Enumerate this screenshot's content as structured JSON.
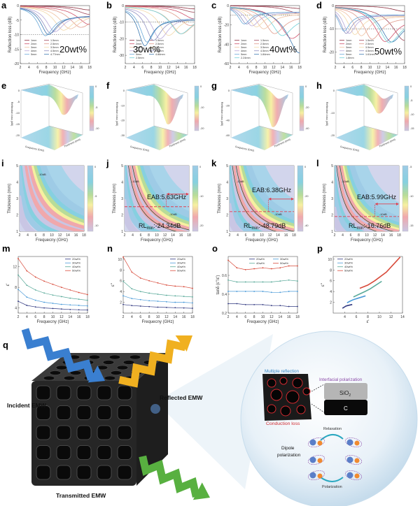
{
  "palette": [
    "#8b2c3c",
    "#a0485a",
    "#d0506a",
    "#e09a8a",
    "#f0c0a0",
    "#f2d8a8",
    "#b8a8d8",
    "#9090c0",
    "#6aa8d8",
    "#3a78b0",
    "#70d0d8"
  ],
  "colormap": [
    "#c9c6e4",
    "#f0a8ac",
    "#f6f0a0",
    "#b8dc98",
    "#86d0e0",
    "#9ecbe6"
  ],
  "series_colors_4": [
    "#303880",
    "#4a9ad8",
    "#5aaa9a",
    "#d84a3a"
  ],
  "chart_data": [
    {
      "label": "a",
      "type": "line",
      "title": "20wt%",
      "xlabel": "Frequency (GHz)",
      "ylabel": "Reflection loss (dB)",
      "xlim": [
        2,
        18
      ],
      "xticks": [
        2,
        4,
        6,
        8,
        10,
        12,
        14,
        16,
        18
      ],
      "ylim": [
        -20,
        0
      ],
      "yticks": [
        0,
        -5,
        -10,
        -15,
        -20
      ],
      "reference_line": -10,
      "series": [
        {
          "name": "1mm",
          "min_freq": 18,
          "min_rl": -1.5
        },
        {
          "name": "1.5mm",
          "min_freq": 18,
          "min_rl": -3
        },
        {
          "name": "2mm",
          "min_freq": 18,
          "min_rl": -6.5
        },
        {
          "name": "2.5mm",
          "min_freq": 16,
          "min_rl": -7.5
        },
        {
          "name": "3mm",
          "min_freq": 13.5,
          "min_rl": -8
        },
        {
          "name": "3.5mm",
          "min_freq": 12,
          "min_rl": -8.5
        },
        {
          "name": "4mm",
          "min_freq": 10,
          "min_rl": -9
        },
        {
          "name": "4.5mm",
          "min_freq": 9,
          "min_rl": -9.5
        },
        {
          "name": "5mm",
          "min_freq": 7.8,
          "min_rl": -10.4
        },
        {
          "name": "4.77mm",
          "min_freq": 8.5,
          "min_rl": -10
        }
      ]
    },
    {
      "label": "b",
      "type": "line",
      "title": "30wt%",
      "xlabel": "Frequency (GHz)",
      "ylabel": "Reflection loss (dB)",
      "xlim": [
        2,
        18
      ],
      "xticks": [
        2,
        4,
        6,
        8,
        10,
        12,
        14,
        16,
        18
      ],
      "ylim": [
        -35,
        0
      ],
      "yticks": [
        0,
        -10,
        -20,
        -30
      ],
      "reference_line": -10,
      "series": [
        {
          "name": "1mm",
          "min_freq": 18,
          "min_rl": -2
        },
        {
          "name": "1.5mm",
          "min_freq": 18,
          "min_rl": -4
        },
        {
          "name": "2mm",
          "min_freq": 18,
          "min_rl": -8
        },
        {
          "name": "2.5mm",
          "min_freq": 17,
          "min_rl": -12
        },
        {
          "name": "3mm",
          "min_freq": 15,
          "min_rl": -17
        },
        {
          "name": "3.5mm",
          "min_freq": 12,
          "min_rl": -18
        },
        {
          "name": "4mm",
          "min_freq": 10,
          "min_rl": -20
        },
        {
          "name": "4.5mm",
          "min_freq": 8.5,
          "min_rl": -21
        },
        {
          "name": "5mm",
          "min_freq": 7,
          "min_rl": -22
        },
        {
          "name": "4.86mm",
          "min_freq": 6.5,
          "min_rl": -24.3
        },
        {
          "name": "2.5mm",
          "min_freq": 14.8,
          "min_rl": -17
        }
      ]
    },
    {
      "label": "c",
      "type": "line",
      "title": "40wt%",
      "xlabel": "Frequency (GHz)",
      "ylabel": "Reflection loss (dB)",
      "xlim": [
        2,
        18
      ],
      "xticks": [
        2,
        4,
        6,
        8,
        10,
        12,
        14,
        16,
        18
      ],
      "ylim": [
        -60,
        0
      ],
      "yticks": [
        0,
        -20,
        -40,
        -60
      ],
      "reference_line": -10,
      "series": [
        {
          "name": "1mm",
          "min_freq": 18,
          "min_rl": -3
        },
        {
          "name": "1.5mm",
          "min_freq": 18,
          "min_rl": -8
        },
        {
          "name": "2mm",
          "min_freq": 16.2,
          "min_rl": -34
        },
        {
          "name": "2.5mm",
          "min_freq": 12.2,
          "min_rl": -29
        },
        {
          "name": "3mm",
          "min_freq": 9.7,
          "min_rl": -24
        },
        {
          "name": "3.5mm",
          "min_freq": 8,
          "min_rl": -22
        },
        {
          "name": "4mm",
          "min_freq": 7,
          "min_rl": -21
        },
        {
          "name": "4.5mm",
          "min_freq": 5.8,
          "min_rl": -19
        },
        {
          "name": "5mm",
          "min_freq": 5.2,
          "min_rl": -19
        },
        {
          "name": "1.84mm",
          "min_freq": 18,
          "min_rl": -49
        },
        {
          "name": "2.24mm",
          "min_freq": 14,
          "min_rl": -31
        }
      ]
    },
    {
      "label": "d",
      "type": "line",
      "title": "50wt%",
      "xlabel": "Frequency (GHz)",
      "ylabel": "Reflection loss (dB)",
      "xlim": [
        2,
        18
      ],
      "xticks": [
        2,
        4,
        6,
        8,
        10,
        12,
        14,
        16,
        18
      ],
      "ylim": [
        -25,
        0
      ],
      "yticks": [
        0,
        -10,
        -20
      ],
      "reference_line": -10,
      "series": [
        {
          "name": "1mm",
          "min_freq": 18,
          "min_rl": -2.5
        },
        {
          "name": "1.5mm",
          "min_freq": 18,
          "min_rl": -15
        },
        {
          "name": "2mm",
          "min_freq": 13.5,
          "min_rl": -15.5
        },
        {
          "name": "2.5mm",
          "min_freq": 10.5,
          "min_rl": -14.5
        },
        {
          "name": "3mm",
          "min_freq": 8,
          "min_rl": -13
        },
        {
          "name": "3.5mm",
          "min_freq": 6.5,
          "min_rl": -12.5
        },
        {
          "name": "4mm",
          "min_freq": 5.2,
          "min_rl": -12
        },
        {
          "name": "4.5mm",
          "min_freq": 4.5,
          "min_rl": -12
        },
        {
          "name": "5mm",
          "min_freq": 4,
          "min_rl": -11
        },
        {
          "name": "1.61mm",
          "min_freq": 15,
          "min_rl": -15.7
        },
        {
          "name": "1.8mm",
          "min_freq": 14.5,
          "min_rl": -16
        }
      ]
    },
    {
      "label": "e",
      "type": "surface",
      "xlabel": "Frequency (GHz)",
      "ylabel": "Thickness (mm)",
      "zlabel": "Reflection loss (dB)",
      "zticks": [
        0,
        -5,
        -10,
        -15,
        -20
      ],
      "colorbar_ticks": [
        0,
        -5,
        -10
      ]
    },
    {
      "label": "f",
      "type": "surface",
      "xlabel": "Frequency (GHz)",
      "ylabel": "Thickness (mm)",
      "zlabel": "Reflection loss (dB)",
      "zticks": [
        0,
        -10,
        -20,
        -30
      ],
      "colorbar_ticks": [
        0,
        -10,
        -20
      ]
    },
    {
      "label": "g",
      "type": "surface",
      "xlabel": "Frequency (GHz)",
      "ylabel": "Thickness (mm)",
      "zlabel": "Reflection loss (dB)",
      "zticks": [
        0,
        -20,
        -40,
        -60
      ],
      "colorbar_ticks": [
        0,
        -20,
        -40
      ]
    },
    {
      "label": "h",
      "type": "surface",
      "xlabel": "Frequency (GHz)",
      "ylabel": "Thickness (mm)",
      "zlabel": "Reflection loss (dB)",
      "zticks": [
        0,
        -10,
        -20
      ],
      "colorbar_ticks": [
        0,
        -5,
        -10,
        -15
      ]
    },
    {
      "label": "i",
      "type": "heatmap",
      "xlabel": "Frequecny (GHz)",
      "ylabel": "Thickness (mm)",
      "xlim": [
        2,
        18
      ],
      "xticks": [
        2,
        4,
        6,
        8,
        10,
        12,
        14,
        16,
        18
      ],
      "ylim": [
        1,
        5
      ],
      "yticks": [
        1,
        2,
        3,
        4,
        5
      ],
      "colorbar_ticks": [
        0,
        -5,
        -10
      ],
      "contour_labels": [
        "-10dB"
      ]
    },
    {
      "label": "j",
      "type": "heatmap",
      "xlabel": "Frequecny (GHz)",
      "ylabel": "Thickness (mm)",
      "xlim": [
        2,
        18
      ],
      "xticks": [
        2,
        4,
        6,
        8,
        10,
        12,
        14,
        16,
        18
      ],
      "ylim": [
        1,
        5
      ],
      "yticks": [
        1,
        2,
        3,
        4,
        5
      ],
      "colorbar_ticks": [
        0,
        -10,
        -20
      ],
      "contour_labels": [
        "-10dB",
        "-10dB"
      ],
      "rl_min": {
        "prefix": "RL",
        "sub": "min",
        "value": ":-24.34dB"
      },
      "eab": "EAB:5.63GHz",
      "eab_range": [
        12.37,
        18
      ],
      "matching_thickness": 2.5
    },
    {
      "label": "k",
      "type": "heatmap",
      "xlabel": "Frequecny (GHz)",
      "ylabel": "Thickness (mm)",
      "xlim": [
        2,
        18
      ],
      "xticks": [
        2,
        4,
        6,
        8,
        10,
        12,
        14,
        16,
        18
      ],
      "ylim": [
        1,
        5
      ],
      "yticks": [
        1,
        2,
        3,
        4,
        5
      ],
      "colorbar_ticks": [
        0,
        -20,
        -40
      ],
      "contour_labels": [
        "-10dB",
        "-10dB"
      ],
      "rl_min": {
        "prefix": "RL",
        "sub": "min",
        "value": ":-48.79dB"
      },
      "eab": "EAB:6.38GHz",
      "eab_range": [
        11.62,
        18
      ],
      "matching_thickness": 2.2
    },
    {
      "label": "l",
      "type": "heatmap",
      "xlabel": "Frequecny (GHz)",
      "ylabel": "Thickness (mm)",
      "xlim": [
        2,
        18
      ],
      "xticks": [
        2,
        4,
        6,
        8,
        10,
        12,
        14,
        16,
        18
      ],
      "ylim": [
        1,
        5
      ],
      "yticks": [
        1,
        2,
        3,
        4,
        5
      ],
      "colorbar_ticks": [
        -5,
        -10,
        -15
      ],
      "contour_labels": [
        "-10dB",
        "-10dB"
      ],
      "rl_min": {
        "prefix": "RL",
        "sub": "min",
        "value": ":-16.76dB"
      },
      "eab": "EAB:5.99GHz",
      "eab_range": [
        12.01,
        18
      ],
      "matching_thickness": 1.9
    },
    {
      "label": "m",
      "type": "line",
      "xlabel": "Frequecny (GHz)",
      "ylabel": "ε'",
      "x": [
        2,
        4,
        6,
        8,
        10,
        12,
        14,
        16,
        18
      ],
      "xticks": [
        2,
        4,
        6,
        8,
        10,
        12,
        14,
        16,
        18
      ],
      "ylim": [
        3,
        14
      ],
      "yticks": [
        4,
        8,
        12
      ],
      "series": [
        {
          "name": "20wt%",
          "values": [
            5.3,
            4.5,
            4.2,
            4.0,
            3.9,
            3.8,
            3.7,
            3.65,
            3.6
          ]
        },
        {
          "name": "30wt%",
          "values": [
            7.6,
            6.1,
            5.5,
            5.1,
            4.9,
            4.7,
            4.6,
            4.5,
            4.4
          ]
        },
        {
          "name": "40wt%",
          "values": [
            10.4,
            8.4,
            7.5,
            6.9,
            6.5,
            6.2,
            5.9,
            5.7,
            5.5
          ]
        },
        {
          "name": "50wt%",
          "values": [
            13.6,
            11.2,
            10.0,
            9.2,
            8.6,
            8.0,
            7.5,
            7.0,
            6.6
          ]
        }
      ]
    },
    {
      "label": "n",
      "type": "line",
      "xlabel": "Frequecny (GHz)",
      "ylabel": "ε''",
      "x": [
        2,
        4,
        6,
        8,
        10,
        12,
        14,
        16,
        18
      ],
      "xticks": [
        2,
        4,
        6,
        8,
        10,
        12,
        14,
        16,
        18
      ],
      "ylim": [
        0,
        10.5
      ],
      "yticks": [
        2,
        4,
        6,
        8,
        10
      ],
      "series": [
        {
          "name": "20wt%",
          "values": [
            1.6,
            1.4,
            1.3,
            1.2,
            1.1,
            1.05,
            1.0,
            0.95,
            0.9
          ]
        },
        {
          "name": "30wt%",
          "values": [
            3.2,
            2.7,
            2.5,
            2.3,
            2.2,
            2.1,
            2.0,
            2.0,
            1.9
          ]
        },
        {
          "name": "40wt%",
          "values": [
            5.9,
            4.5,
            4.0,
            3.7,
            3.5,
            3.3,
            3.2,
            3.1,
            3.0
          ]
        },
        {
          "name": "50wt%",
          "values": [
            10.4,
            7.6,
            6.5,
            6.0,
            5.6,
            5.2,
            5.0,
            4.9,
            4.6
          ]
        }
      ]
    },
    {
      "label": "o",
      "type": "line",
      "xlabel": "Frequecny (GHz)",
      "ylabel": "tanδ (ε''/ε')",
      "x": [
        2,
        4,
        6,
        8,
        10,
        12,
        14,
        16,
        18
      ],
      "xticks": [
        2,
        4,
        6,
        8,
        10,
        12,
        14,
        16,
        18
      ],
      "ylim": [
        0.2,
        0.8
      ],
      "yticks": [
        0.2,
        0.4,
        0.6
      ],
      "series": [
        {
          "name": "20wt%",
          "values": [
            0.3,
            0.3,
            0.29,
            0.29,
            0.29,
            0.28,
            0.28,
            0.27,
            0.27
          ]
        },
        {
          "name": "30wt%",
          "values": [
            0.43,
            0.43,
            0.43,
            0.43,
            0.43,
            0.42,
            0.42,
            0.43,
            0.43
          ]
        },
        {
          "name": "40wt%",
          "values": [
            0.55,
            0.53,
            0.53,
            0.53,
            0.53,
            0.53,
            0.54,
            0.55,
            0.54
          ]
        },
        {
          "name": "50wt%",
          "values": [
            0.76,
            0.68,
            0.66,
            0.67,
            0.68,
            0.67,
            0.68,
            0.7,
            0.7
          ]
        }
      ]
    },
    {
      "label": "p",
      "type": "scatter",
      "xlabel": "ε'",
      "ylabel": "ε''",
      "xlim": [
        2,
        14
      ],
      "xticks": [
        4,
        6,
        8,
        10,
        12,
        14
      ],
      "ylim": [
        0,
        10.5
      ],
      "yticks": [
        2,
        4,
        6,
        8,
        10
      ],
      "series": [
        {
          "name": "20wt%",
          "x": [
            3.6,
            3.9,
            4.2,
            4.5,
            5.3
          ],
          "y": [
            0.9,
            1.1,
            1.3,
            1.4,
            1.6
          ]
        },
        {
          "name": "30wt%",
          "x": [
            4.4,
            4.9,
            5.5,
            6.1,
            7.6
          ],
          "y": [
            1.9,
            2.2,
            2.5,
            2.7,
            3.2
          ]
        },
        {
          "name": "40wt%",
          "x": [
            5.5,
            6.5,
            7.5,
            8.4,
            10.4
          ],
          "y": [
            3.0,
            3.5,
            4.0,
            4.5,
            5.9
          ]
        },
        {
          "name": "50wt%",
          "x": [
            6.6,
            8.0,
            9.2,
            11.2,
            13.6
          ],
          "y": [
            4.6,
            5.2,
            6.0,
            7.6,
            10.4
          ]
        }
      ]
    }
  ],
  "illustration": {
    "label": "q",
    "incident": "Incident EMW",
    "reflected": "Reflected EMW",
    "transmitted": "Transmitted EMW",
    "multiple_reflection": "Multiple reflection",
    "interfacial_polarization": "Interfacial polarization",
    "sio2_prefix": "SiO",
    "sio2_sub": "2",
    "carbon": "C",
    "conduction_loss": "Conduction loss",
    "relaxation": "Relaxation",
    "dipole_line1": "Dipole",
    "dipole_line2": "polarization",
    "polarization": "Polarization"
  }
}
